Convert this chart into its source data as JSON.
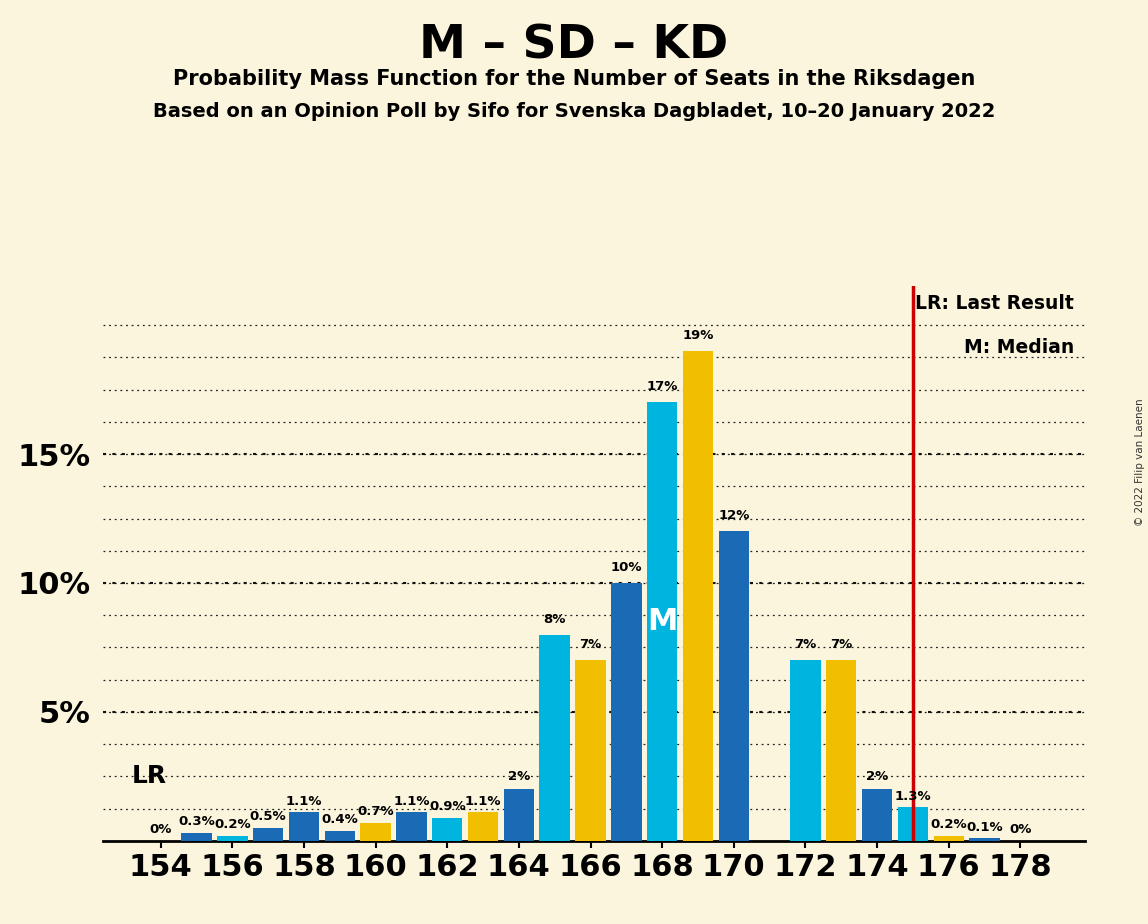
{
  "title": "M – SD – KD",
  "subtitle1": "Probability Mass Function for the Number of Seats in the Riksdagen",
  "subtitle2": "Based on an Opinion Poll by Sifo for Svenska Dagbladet, 10–20 January 2022",
  "copyright": "© 2022 Filip van Laenen",
  "bg": "#faf5dc",
  "color_blue": "#1a6ab5",
  "color_cyan": "#00b4e0",
  "color_gold": "#f2be00",
  "color_red": "#cc0000",
  "seat_bars": [
    [
      154,
      0.0,
      "#1a6ab5"
    ],
    [
      155,
      0.3,
      "#1a6ab5"
    ],
    [
      156,
      0.2,
      "#00b4e0"
    ],
    [
      157,
      0.5,
      "#1a6ab5"
    ],
    [
      158,
      1.1,
      "#1a6ab5"
    ],
    [
      159,
      0.4,
      "#1a6ab5"
    ],
    [
      160,
      0.7,
      "#f2be00"
    ],
    [
      161,
      1.1,
      "#1a6ab5"
    ],
    [
      162,
      0.9,
      "#00b4e0"
    ],
    [
      163,
      1.1,
      "#f2be00"
    ],
    [
      164,
      2.0,
      "#1a6ab5"
    ],
    [
      165,
      8.0,
      "#00b4e0"
    ],
    [
      166,
      7.0,
      "#f2be00"
    ],
    [
      167,
      10.0,
      "#1a6ab5"
    ],
    [
      168,
      17.0,
      "#00b4e0"
    ],
    [
      169,
      19.0,
      "#f2be00"
    ],
    [
      170,
      12.0,
      "#1a6ab5"
    ],
    [
      171,
      0.0,
      "#00b4e0"
    ],
    [
      172,
      7.0,
      "#00b4e0"
    ],
    [
      173,
      7.0,
      "#f2be00"
    ],
    [
      174,
      2.0,
      "#1a6ab5"
    ],
    [
      175,
      1.3,
      "#00b4e0"
    ],
    [
      176,
      0.2,
      "#f2be00"
    ],
    [
      177,
      0.1,
      "#1a6ab5"
    ],
    [
      178,
      0.0,
      "#f2be00"
    ]
  ],
  "bar_labels": {
    "154": "0%",
    "155": "0.3%",
    "156": "0.2%",
    "157": "0.5%",
    "158": "1.1%",
    "159": "0.4%",
    "160": "0.7%",
    "161": "1.1%",
    "162": "0.9%",
    "163": "1.1%",
    "164": "2%",
    "165": "8%",
    "166": "7%",
    "167": "10%",
    "168": "17%",
    "169": "19%",
    "170": "12%",
    "172": "7%",
    "173": "7%",
    "174": "2%",
    "175": "1.3%",
    "176": "0.2%",
    "177": "0.1%",
    "178": "0%"
  },
  "last_result_x": 175.0,
  "median_seat": 168,
  "bar_width": 0.85,
  "ylim": [
    0,
    21.5
  ],
  "xlim": [
    152.4,
    179.8
  ],
  "xticks": [
    154,
    156,
    158,
    160,
    162,
    164,
    166,
    168,
    170,
    172,
    174,
    176,
    178
  ],
  "ytick_positions": [
    5,
    10,
    15
  ],
  "ytick_labels": [
    "5%",
    "10%",
    "15%"
  ]
}
